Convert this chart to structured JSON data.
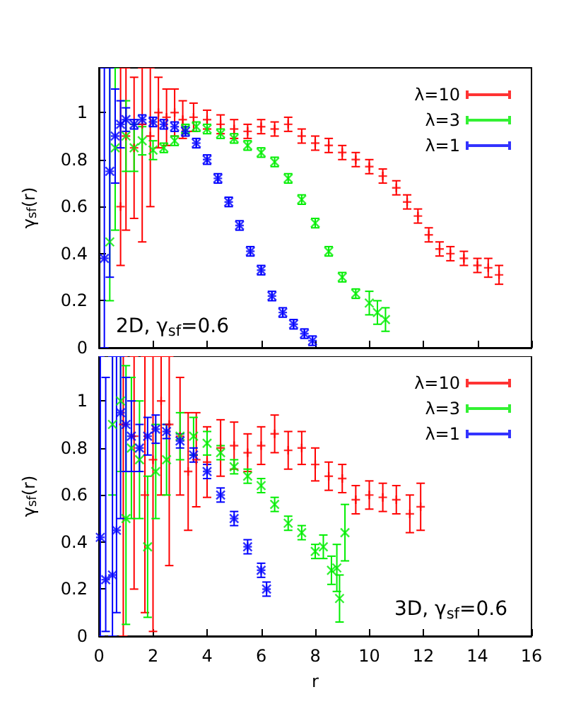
{
  "chart_data": [
    {
      "type": "scatter",
      "ylabel": "γ$_{sf}$(r)",
      "annotations": [
        "2D, γ$_{sf}$=0.6"
      ],
      "xlim": [
        0,
        16
      ],
      "xticks": [
        0,
        2,
        4,
        6,
        8,
        10,
        12,
        14,
        16
      ],
      "ylim": [
        0,
        1.19
      ],
      "yticks": [
        0,
        0.2,
        0.4,
        0.6,
        0.8,
        1
      ],
      "tick_labels": "y",
      "legend": "top right",
      "marker": "cross",
      "grid": false,
      "series": [
        {
          "name": "λ=10",
          "color": "#ff0000",
          "x": [
            0.8,
            1.0,
            1.3,
            1.6,
            1.9,
            2.2,
            2.5,
            2.8,
            3.1,
            3.5,
            4.0,
            4.5,
            5.0,
            5.5,
            6.0,
            6.5,
            7.0,
            7.5,
            8.0,
            8.5,
            9.0,
            9.5,
            10.0,
            10.5,
            11.0,
            11.4,
            11.8,
            12.2,
            12.6,
            13.0,
            13.5,
            14.0,
            14.4,
            14.8
          ],
          "values": [
            0.6,
            0.9,
            0.85,
            0.95,
            0.9,
            1.0,
            0.98,
            1.0,
            0.97,
            0.98,
            0.97,
            0.95,
            0.93,
            0.92,
            0.94,
            0.93,
            0.95,
            0.9,
            0.87,
            0.86,
            0.83,
            0.8,
            0.77,
            0.73,
            0.68,
            0.62,
            0.56,
            0.48,
            0.42,
            0.4,
            0.38,
            0.35,
            0.34,
            0.31
          ],
          "errors": [
            [
              0.35,
              1.19
            ],
            [
              0.5,
              1.19
            ],
            [
              0.55,
              1.15
            ],
            [
              0.45,
              1.19
            ],
            [
              0.6,
              1.19
            ],
            0.15,
            0.12,
            0.1,
            0.08,
            0.06,
            0.04,
            0.04,
            0.04,
            0.03,
            0.03,
            0.03,
            0.03,
            0.03,
            0.03,
            0.03,
            0.03,
            0.03,
            0.03,
            0.03,
            0.03,
            0.03,
            0.03,
            0.03,
            0.03,
            0.03,
            0.03,
            0.03,
            0.04,
            0.04
          ]
        },
        {
          "name": "λ=3",
          "color": "#00ee00",
          "x": [
            0.4,
            0.6,
            0.8,
            1.0,
            1.3,
            1.6,
            2.0,
            2.4,
            2.8,
            3.2,
            3.6,
            4.0,
            4.5,
            5.0,
            5.5,
            6.0,
            6.5,
            7.0,
            7.5,
            8.0,
            8.5,
            9.0,
            9.5,
            10.0,
            10.3,
            10.6
          ],
          "values": [
            0.45,
            0.85,
            null,
            0.9,
            0.85,
            0.88,
            0.84,
            0.85,
            0.88,
            0.93,
            0.94,
            0.93,
            0.91,
            0.89,
            0.86,
            0.83,
            0.79,
            0.72,
            0.63,
            0.53,
            0.41,
            0.3,
            0.23,
            0.19,
            0.15,
            0.12
          ],
          "errors": [
            [
              0.2,
              1.19
            ],
            [
              0.5,
              1.19
            ],
            null,
            0.15,
            0.1,
            0.06,
            0.04,
            0.02,
            0.02,
            0.02,
            0.02,
            0.02,
            0.02,
            0.02,
            0.02,
            0.02,
            0.02,
            0.02,
            0.02,
            0.02,
            0.02,
            0.02,
            0.02,
            0.05,
            0.05,
            0.05
          ]
        },
        {
          "name": "λ=1",
          "color": "#0000ff",
          "x": [
            0.2,
            0.4,
            0.6,
            0.8,
            1.0,
            1.3,
            1.6,
            2.0,
            2.4,
            2.8,
            3.2,
            3.6,
            4.0,
            4.4,
            4.8,
            5.2,
            5.6,
            6.0,
            6.4,
            6.8,
            7.2,
            7.6,
            7.9
          ],
          "values": [
            0.38,
            0.75,
            0.9,
            0.95,
            0.97,
            0.95,
            0.97,
            0.96,
            0.95,
            0.94,
            0.92,
            0.87,
            0.8,
            0.72,
            0.62,
            0.52,
            0.41,
            0.33,
            0.22,
            0.15,
            0.1,
            0.06,
            0.03
          ],
          "errors": [
            [
              0,
              1.19
            ],
            [
              0.3,
              1.19
            ],
            0.2,
            0.1,
            0.05,
            0.02,
            0.02,
            0.02,
            0.02,
            0.02,
            0.02,
            0.02,
            0.02,
            0.02,
            0.02,
            0.02,
            0.02,
            0.02,
            0.02,
            0.02,
            0.02,
            0.02,
            0.02
          ]
        }
      ]
    },
    {
      "type": "scatter",
      "xlabel": "r",
      "ylabel": "γ$_{sf}$(r)",
      "annotations": [
        "3D, γ$_{sf}$=0.6"
      ],
      "xlim": [
        0,
        16
      ],
      "xticks": [
        0,
        2,
        4,
        6,
        8,
        10,
        12,
        14,
        16
      ],
      "ylim": [
        0,
        1.19
      ],
      "yticks": [
        0,
        0.2,
        0.4,
        0.6,
        0.8,
        1
      ],
      "legend": "top right",
      "marker": "cross",
      "grid": false,
      "series": [
        {
          "name": "λ=10",
          "color": "#ff0000",
          "x": [
            0.9,
            1.3,
            1.7,
            2.0,
            2.3,
            2.6,
            3.0,
            3.3,
            3.6,
            4.0,
            4.5,
            5.0,
            5.5,
            6.0,
            6.5,
            7.0,
            7.5,
            8.0,
            8.5,
            9.0,
            9.5,
            10.0,
            10.5,
            11.0,
            11.5,
            11.9
          ],
          "values": [
            0.9,
            0.85,
            0.6,
            0.75,
            1.0,
            0.9,
            0.85,
            0.7,
            0.75,
            0.74,
            0.8,
            0.81,
            0.78,
            0.81,
            0.86,
            0.79,
            0.8,
            0.73,
            0.68,
            0.67,
            0.58,
            0.6,
            0.59,
            0.58,
            0.52,
            0.55
          ],
          "errors": [
            [
              0,
              1.19
            ],
            [
              0.2,
              1.19
            ],
            [
              0.1,
              1.19
            ],
            [
              0.02,
              1.19
            ],
            [
              0.6,
              1.19
            ],
            [
              0.3,
              1.19
            ],
            0.25,
            0.25,
            0.2,
            0.15,
            0.12,
            0.1,
            0.08,
            0.08,
            0.08,
            0.08,
            0.07,
            0.07,
            0.06,
            0.06,
            0.06,
            0.06,
            0.06,
            0.06,
            0.08,
            0.1
          ]
        },
        {
          "name": "λ=3",
          "color": "#00ee00",
          "x": [
            0.5,
            0.8,
            1.0,
            1.2,
            1.5,
            1.8,
            2.1,
            2.5,
            3.0,
            3.5,
            4.0,
            4.5,
            5.0,
            5.5,
            6.0,
            6.5,
            7.0,
            7.5,
            8.0,
            8.3,
            8.6,
            8.8,
            8.9,
            9.1
          ],
          "values": [
            0.9,
            1.0,
            0.5,
            0.8,
            0.75,
            0.38,
            0.7,
            0.75,
            0.85,
            0.85,
            0.82,
            0.78,
            0.72,
            0.68,
            0.64,
            0.56,
            0.48,
            0.44,
            0.36,
            0.38,
            0.28,
            0.29,
            0.16,
            0.44
          ],
          "errors": [
            [
              0.6,
              1.19
            ],
            [
              0.7,
              1.19
            ],
            [
              0.05,
              1.15
            ],
            0.3,
            0.25,
            0.3,
            0.2,
            0.15,
            0.1,
            0.08,
            0.05,
            0.03,
            0.03,
            0.03,
            0.03,
            0.03,
            0.03,
            0.03,
            0.03,
            0.05,
            0.06,
            0.1,
            0.1,
            0.12
          ]
        },
        {
          "name": "λ=1",
          "color": "#0000ff",
          "x": [
            0.05,
            0.25,
            0.5,
            0.65,
            0.8,
            1.0,
            1.2,
            1.5,
            1.8,
            2.1,
            2.5,
            3.0,
            3.5,
            4.0,
            4.5,
            5.0,
            5.5,
            6.0,
            6.2
          ],
          "values": [
            0.42,
            0.24,
            0.26,
            0.45,
            0.95,
            0.9,
            0.85,
            0.8,
            0.85,
            0.88,
            0.87,
            0.83,
            0.77,
            0.7,
            0.6,
            0.5,
            0.38,
            0.28,
            0.2
          ],
          "errors": [
            [
              0,
              1.19
            ],
            [
              0.02,
              1.1
            ],
            [
              0,
              1.19
            ],
            [
              0.1,
              1.19
            ],
            [
              0.5,
              1.19
            ],
            0.2,
            0.15,
            0.1,
            0.08,
            0.06,
            0.03,
            0.03,
            0.03,
            0.03,
            0.03,
            0.03,
            0.03,
            0.03,
            0.03
          ]
        }
      ]
    }
  ]
}
